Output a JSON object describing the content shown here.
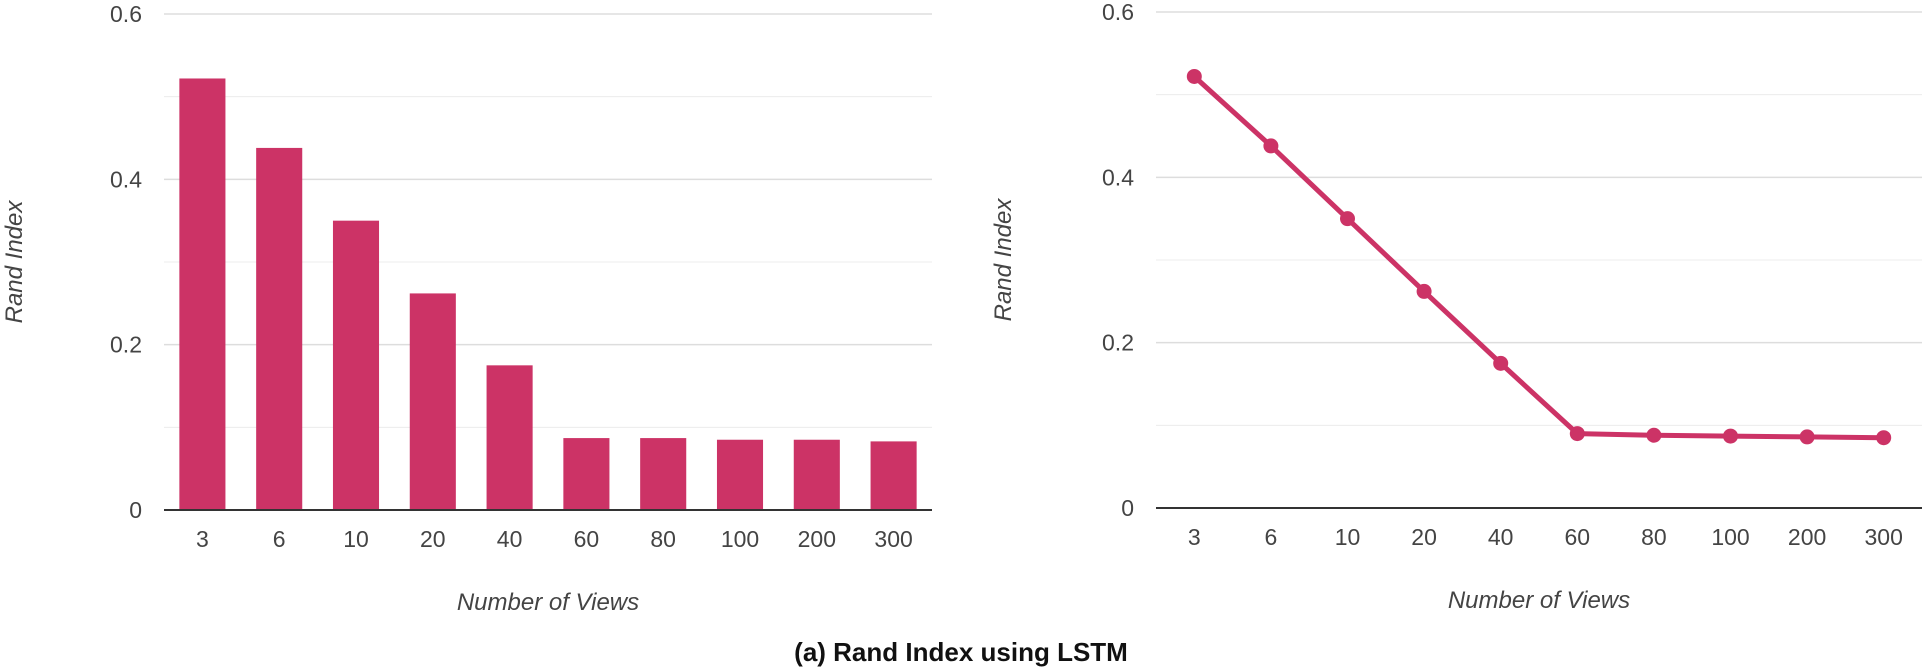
{
  "caption": "(a) Rand Index using LSTM",
  "colors": {
    "series": "#cc3366",
    "grid": "#dddddd",
    "axis": "#333333",
    "text": "#444444"
  },
  "chart_data": [
    {
      "type": "bar",
      "categories": [
        "3",
        "6",
        "10",
        "20",
        "40",
        "60",
        "80",
        "100",
        "200",
        "300"
      ],
      "values": [
        0.522,
        0.438,
        0.35,
        0.262,
        0.175,
        0.087,
        0.087,
        0.085,
        0.085,
        0.083
      ],
      "xlabel": "Number of Views",
      "ylabel": "Rand Index",
      "ylim": [
        0,
        0.6
      ],
      "yticks": [
        "0",
        "0.2",
        "0.4",
        "0.6"
      ],
      "grid": true
    },
    {
      "type": "line",
      "categories": [
        "3",
        "6",
        "10",
        "20",
        "40",
        "60",
        "80",
        "100",
        "200",
        "300"
      ],
      "values": [
        0.522,
        0.438,
        0.35,
        0.262,
        0.175,
        0.09,
        0.088,
        0.087,
        0.086,
        0.085
      ],
      "xlabel": "Number of Views",
      "ylabel": "Rand Index",
      "ylim": [
        0,
        0.6
      ],
      "yticks": [
        "0",
        "0.2",
        "0.4",
        "0.6"
      ],
      "grid": true,
      "markers": true
    }
  ]
}
